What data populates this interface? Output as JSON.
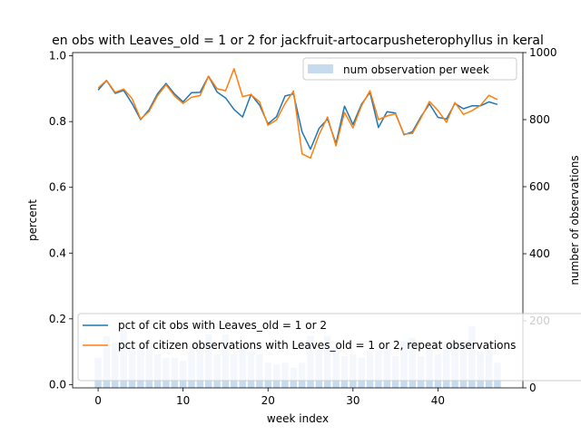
{
  "chart_data": {
    "type": "bar+line",
    "title": "en obs with Leaves_old = 1 or 2 for jackfruit-artocarpusheterophyllus in keral",
    "xlabel": "week index",
    "ylabel_left": "percent",
    "ylabel_right": "number of observations",
    "xlim": [
      -3,
      50
    ],
    "ylim_left": [
      -0.01,
      1.01
    ],
    "ylim_right": [
      0,
      1000
    ],
    "x_ticks": [
      0,
      10,
      20,
      30,
      40
    ],
    "y_ticks_left": [
      0.0,
      0.2,
      0.4,
      0.6,
      0.8,
      1.0
    ],
    "y_ticks_right": [
      0,
      200,
      400,
      600,
      800,
      1000
    ],
    "legend_right": {
      "placement": "top-right",
      "entry": "num observation per week"
    },
    "legend_left": {
      "placement": "lower-left"
    },
    "x": [
      0,
      1,
      2,
      3,
      4,
      5,
      6,
      7,
      8,
      9,
      10,
      11,
      12,
      13,
      14,
      15,
      16,
      17,
      18,
      19,
      20,
      21,
      22,
      23,
      24,
      25,
      26,
      27,
      28,
      29,
      30,
      31,
      32,
      33,
      34,
      35,
      36,
      37,
      38,
      39,
      40,
      41,
      42,
      43,
      44,
      45,
      46,
      47
    ],
    "bars": {
      "name": "num observation per week",
      "color": "#c6dbef",
      "values": [
        90,
        155,
        135,
        180,
        125,
        120,
        125,
        100,
        90,
        90,
        80,
        125,
        120,
        160,
        100,
        160,
        100,
        130,
        110,
        100,
        75,
        70,
        75,
        60,
        75,
        155,
        115,
        155,
        120,
        95,
        100,
        90,
        110,
        115,
        130,
        95,
        140,
        150,
        95,
        120,
        100,
        130,
        130,
        140,
        185,
        110,
        115,
        75
      ]
    },
    "series": [
      {
        "name": "pct of cit obs with Leaves_old = 1 or 2",
        "color": "#1f77b4",
        "values": [
          0.896,
          0.925,
          0.886,
          0.895,
          0.855,
          0.806,
          0.836,
          0.885,
          0.916,
          0.884,
          0.86,
          0.888,
          0.889,
          0.938,
          0.89,
          0.872,
          0.837,
          0.814,
          0.883,
          0.85,
          0.793,
          0.815,
          0.878,
          0.884,
          0.769,
          0.716,
          0.779,
          0.808,
          0.733,
          0.847,
          0.791,
          0.853,
          0.889,
          0.782,
          0.83,
          0.826,
          0.76,
          0.769,
          0.815,
          0.854,
          0.813,
          0.808,
          0.855,
          0.839,
          0.848,
          0.848,
          0.86,
          0.852
        ]
      },
      {
        "name": "pct of citizen observations with Leaves_old = 1 or 2, repeat observations",
        "color": "#ff7f0e",
        "values": [
          0.902,
          0.926,
          0.889,
          0.899,
          0.87,
          0.808,
          0.831,
          0.879,
          0.912,
          0.878,
          0.855,
          0.874,
          0.879,
          0.938,
          0.9,
          0.894,
          0.961,
          0.876,
          0.882,
          0.86,
          0.789,
          0.805,
          0.855,
          0.893,
          0.702,
          0.689,
          0.76,
          0.814,
          0.726,
          0.828,
          0.781,
          0.848,
          0.894,
          0.806,
          0.817,
          0.824,
          0.762,
          0.764,
          0.811,
          0.861,
          0.834,
          0.798,
          0.858,
          0.822,
          0.833,
          0.849,
          0.88,
          0.867
        ]
      }
    ]
  }
}
